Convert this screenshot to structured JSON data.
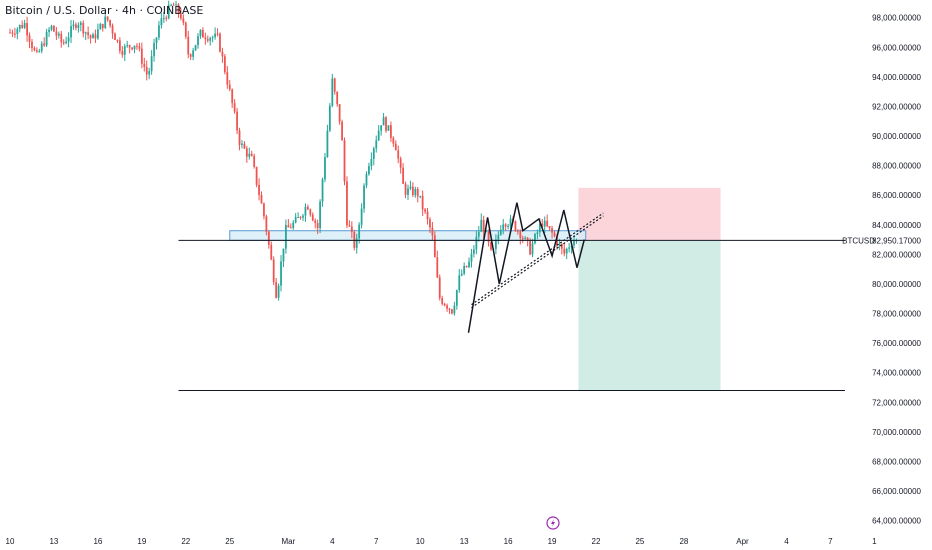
{
  "chart_data": {
    "type": "candlestick",
    "title": "Bitcoin / U.S. Dollar · 4h · COINBASE",
    "symbol_label": "BTCUSD",
    "current_price": 82950.17,
    "current_price_label": "82,950.17000",
    "ylim": [
      63500,
      99200
    ],
    "y_ticks": [
      {
        "value": 98000,
        "label": "98,000.00000"
      },
      {
        "value": 96000,
        "label": "96,000.00000"
      },
      {
        "value": 94000,
        "label": "94,000.00000"
      },
      {
        "value": 92000,
        "label": "92,000.00000"
      },
      {
        "value": 90000,
        "label": "90,000.00000"
      },
      {
        "value": 88000,
        "label": "88,000.00000"
      },
      {
        "value": 86000,
        "label": "86,000.00000"
      },
      {
        "value": 84000,
        "label": "84,000.00000"
      },
      {
        "value": 82000,
        "label": "82,000.00000"
      },
      {
        "value": 80000,
        "label": "80,000.00000"
      },
      {
        "value": 78000,
        "label": "78,000.00000"
      },
      {
        "value": 76000,
        "label": "76,000.00000"
      },
      {
        "value": 74000,
        "label": "74,000.00000"
      },
      {
        "value": 72000,
        "label": "72,000.00000"
      },
      {
        "value": 70000,
        "label": "70,000.00000"
      },
      {
        "value": 68000,
        "label": "68,000.00000"
      },
      {
        "value": 66000,
        "label": "66,000.00000"
      },
      {
        "value": 64000,
        "label": "64,000.00000"
      }
    ],
    "x_ticks": [
      {
        "day": 0,
        "label": "10"
      },
      {
        "day": 3,
        "label": "13"
      },
      {
        "day": 6,
        "label": "16"
      },
      {
        "day": 9,
        "label": "19"
      },
      {
        "day": 12,
        "label": "22"
      },
      {
        "day": 15,
        "label": "25"
      },
      {
        "day": 19,
        "label": "Mar"
      },
      {
        "day": 22,
        "label": "4"
      },
      {
        "day": 25,
        "label": "7"
      },
      {
        "day": 28,
        "label": "10"
      },
      {
        "day": 31,
        "label": "13"
      },
      {
        "day": 34,
        "label": "16"
      },
      {
        "day": 37,
        "label": "19"
      },
      {
        "day": 40,
        "label": "22"
      },
      {
        "day": 43,
        "label": "25"
      },
      {
        "day": 46,
        "label": "28"
      },
      {
        "day": 50,
        "label": "Apr"
      },
      {
        "day": 53,
        "label": "4"
      },
      {
        "day": 56,
        "label": "7"
      },
      {
        "day": 59,
        "label": "1"
      }
    ],
    "colors": {
      "up": "#26a69a",
      "down": "#ef5350",
      "zone_fill": "#d6ecf6",
      "zone_stroke": "#5b9bd5",
      "stop_fill": "#fbd5d9",
      "target_fill": "#d1ebe5",
      "line": "#131722",
      "bolt": "#9c27b0"
    },
    "price_path": [
      [
        0,
        97000
      ],
      [
        1,
        97600
      ],
      [
        1.8,
        95300
      ],
      [
        2.8,
        97400
      ],
      [
        3.6,
        96200
      ],
      [
        4.6,
        97800
      ],
      [
        5.6,
        96500
      ],
      [
        6.6,
        98000
      ],
      [
        7.6,
        95800
      ],
      [
        8.6,
        96300
      ],
      [
        9.4,
        94000
      ],
      [
        10.2,
        97600
      ],
      [
        11.1,
        98900
      ],
      [
        11.7,
        98100
      ],
      [
        12.2,
        95400
      ],
      [
        13,
        96900
      ],
      [
        14.2,
        96600
      ],
      [
        15.1,
        92500
      ],
      [
        15.7,
        89500
      ],
      [
        16.5,
        88400
      ],
      [
        17.4,
        84300
      ],
      [
        18.2,
        79200
      ],
      [
        18.8,
        83600
      ],
      [
        19.6,
        84300
      ],
      [
        20.3,
        85400
      ],
      [
        21,
        83800
      ],
      [
        22,
        93700
      ],
      [
        22.6,
        90600
      ],
      [
        23,
        84300
      ],
      [
        23.6,
        82300
      ],
      [
        24.3,
        87600
      ],
      [
        25.4,
        91200
      ],
      [
        26.3,
        89500
      ],
      [
        26.9,
        86300
      ],
      [
        27.8,
        86200
      ],
      [
        28.8,
        83400
      ],
      [
        29.3,
        79100
      ],
      [
        30.2,
        78200
      ],
      [
        30.7,
        80500
      ],
      [
        31.4,
        81500
      ],
      [
        32.2,
        84300
      ],
      [
        32.9,
        81800
      ],
      [
        33.6,
        84300
      ],
      [
        34.3,
        84100
      ],
      [
        34.8,
        83500
      ],
      [
        35.5,
        82300
      ],
      [
        36.3,
        84200
      ],
      [
        37.1,
        83300
      ],
      [
        37.8,
        82000
      ],
      [
        38.4,
        83000
      ],
      [
        38.7,
        82950
      ]
    ],
    "annotations": {
      "support_zone": {
        "day_start": 15.0,
        "day_end": 39.3,
        "price_top": 83600,
        "price_bottom": 82950
      },
      "pattern": [
        [
          31.3,
          76700
        ],
        [
          32.6,
          84500
        ],
        [
          33.4,
          80000
        ],
        [
          34.6,
          85500
        ],
        [
          35.0,
          83600
        ],
        [
          36.1,
          84400
        ],
        [
          37.0,
          81900
        ],
        [
          37.8,
          85000
        ],
        [
          38.7,
          81100
        ],
        [
          39.2,
          83000
        ]
      ],
      "wedge_line": {
        "day_start": 31.5,
        "price_start": 78600,
        "day_end": 40.5,
        "price_end": 84800
      },
      "stop_zone": {
        "day_start": 38.8,
        "day_end": 48.5,
        "price_top": 86500,
        "price_bottom": 82950
      },
      "target_zone": {
        "day_start": 38.8,
        "day_end": 48.5,
        "price_top": 82950,
        "price_bottom": 72800
      },
      "upper_level": 82950,
      "lower_level": 72800,
      "level_line_start_day": 11.5
    }
  }
}
